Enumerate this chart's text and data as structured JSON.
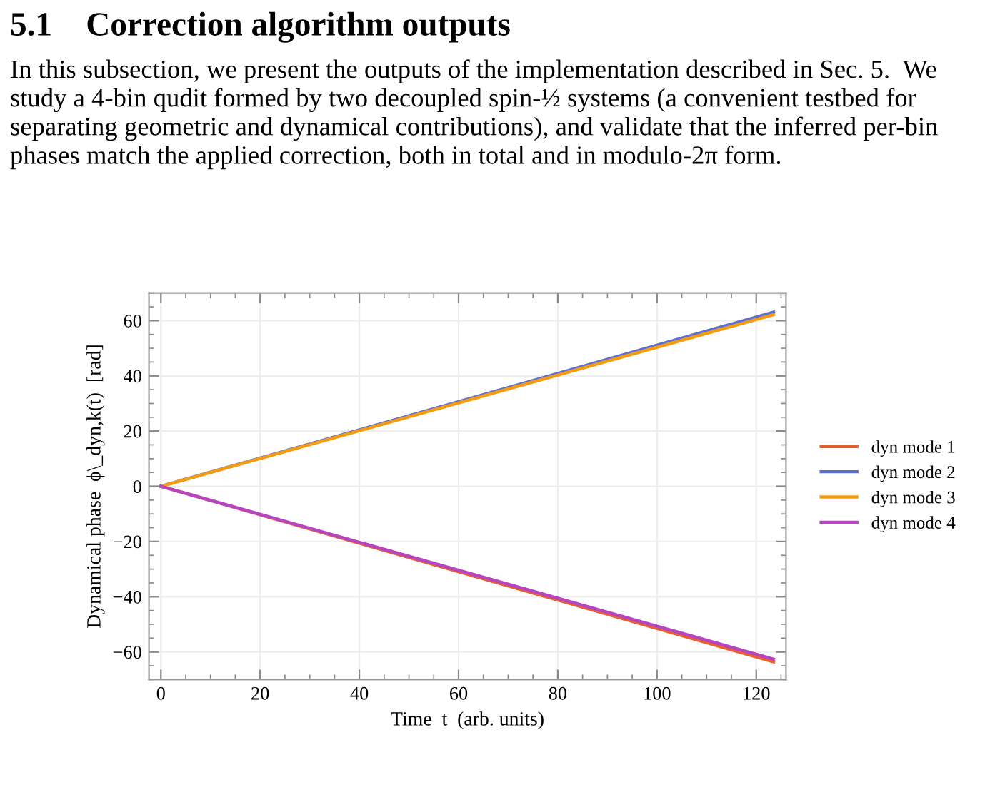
{
  "chart_data": {
    "type": "line",
    "title": "5.1    Correction algorithm outputs",
    "subtitle": "In this subsection, we present the outputs of the implementation described in Sec. 5.  We study a 4-bin qudit formed by two decoupled spin-½ systems (a convenient testbed for separating geometric and dynamical contributions), and validate that the inferred per-bin phases match the applied correction, both in total and in modulo-2π form.",
    "xlabel": "Time  t  (arb. units)",
    "ylabel": "Dynamical phase  ϕ\\_dyn,k(t)  [rad]",
    "x": [
      0,
      123.5
    ],
    "series": [
      {
        "name": "dyn mode 1",
        "color": "#e8602c",
        "values": [
          0,
          -63.6
        ]
      },
      {
        "name": "dyn mode 2",
        "color": "#5d6fd6",
        "values": [
          0,
          63.1
        ]
      },
      {
        "name": "dyn mode 3",
        "color": "#f39c12",
        "values": [
          0,
          62.2
        ]
      },
      {
        "name": "dyn mode 4",
        "color": "#b745c0",
        "values": [
          0,
          -62.6
        ]
      }
    ],
    "xlim": [
      -2.4,
      126
    ],
    "xticks": [
      0,
      20,
      40,
      60,
      80,
      100,
      120
    ],
    "ylim": [
      -70,
      70
    ],
    "yticks": [
      -60,
      -40,
      -20,
      0,
      20,
      40,
      60
    ],
    "grid": true,
    "legend": "right",
    "line_style": "solid",
    "marker": "none"
  }
}
